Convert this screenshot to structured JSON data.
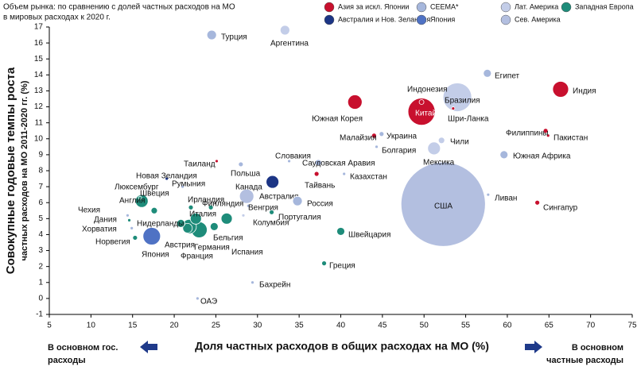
{
  "chart_data": {
    "type": "bubble",
    "subtitle": [
      "Объем рынка: по сравнению с долей частных расходов на МО",
      "в мировых расходах к 2020 г."
    ],
    "ylabel": [
      "Совокупные годовые темпы роста",
      "частных расходов на МО 2011-2020 гг. (%)"
    ],
    "xlabel": "Доля частных расходов в общих расходах на МО (%)",
    "left_note": [
      "В основном гос.",
      "расходы"
    ],
    "right_note": [
      "В основном",
      "частные расходы"
    ],
    "xlim": [
      5,
      75
    ],
    "xticks": [
      5,
      10,
      15,
      20,
      25,
      30,
      35,
      40,
      45,
      50,
      55,
      60,
      65,
      70,
      75
    ],
    "ylim": [
      -1,
      17
    ],
    "yticks": [
      -1,
      0,
      1,
      2,
      3,
      4,
      5,
      6,
      7,
      8,
      9,
      10,
      11,
      12,
      13,
      14,
      15,
      16,
      17
    ],
    "legend_position": "top",
    "series": [
      {
        "name": "Азия за искл. Японии",
        "color": "#c8102e",
        "labels": [
          "Индия",
          "Индонезия",
          "Китай",
          "Южная Корея",
          "Шри-Ланка",
          "Малайзия",
          "Филиппины",
          "Пакистан",
          "Таиланд",
          "Тайвань",
          "Сингапур"
        ],
        "x": [
          66.4,
          49.7,
          49.7,
          41.7,
          53.5,
          44.0,
          64.6,
          64.9,
          25.1,
          37.1,
          63.6
        ],
        "values": [
          13.1,
          12.3,
          11.7,
          12.3,
          11.9,
          10.2,
          10.5,
          10.2,
          8.6,
          7.8,
          6.0
        ],
        "sizes": [
          100,
          9,
          290,
          81,
          4,
          9,
          9,
          4,
          4,
          9,
          9
        ]
      },
      {
        "name": "CEEMA*",
        "color": "#a6b7dc",
        "labels": [
          "Турция",
          "Египет",
          "Украина",
          "Болгария",
          "Южная Африка",
          "Словакия",
          "Саудовская Аравия",
          "Польша",
          "Казахстан",
          "Ливан",
          "Россия",
          "Венгрия",
          "Румыния",
          "Чехия",
          "Хорватия",
          "Бахрейн",
          "ОАЭ"
        ],
        "x": [
          24.5,
          57.6,
          44.9,
          44.3,
          59.6,
          33.8,
          37.3,
          28.0,
          40.4,
          57.7,
          34.8,
          28.9,
          21.0,
          14.4,
          14.9,
          29.4,
          22.8
        ],
        "values": [
          16.5,
          14.1,
          10.3,
          9.5,
          9.0,
          8.6,
          8.5,
          8.4,
          7.8,
          6.5,
          6.1,
          5.8,
          7.0,
          5.2,
          4.4,
          1.0,
          0.0
        ],
        "sizes": [
          36,
          25,
          9,
          4,
          25,
          4,
          16,
          9,
          4,
          4,
          36,
          4,
          4,
          4,
          4,
          4,
          4
        ]
      },
      {
        "name": "Лат. Америка",
        "color": "#c3cde8",
        "labels": [
          "Аргентина",
          "Бразилия",
          "Чили",
          "Мексика",
          "Колумбия"
        ],
        "x": [
          33.3,
          54.0,
          52.1,
          51.2,
          28.3
        ],
        "values": [
          16.8,
          12.6,
          9.9,
          9.4,
          5.2
        ],
        "sizes": [
          36,
          324,
          16,
          64,
          4
        ]
      },
      {
        "name": "Западная Европа",
        "color": "#1e8c7a",
        "labels": [
          "Люксембург",
          "Англия",
          "Швеция",
          "Ирландия",
          "Финляндия",
          "Португалия",
          "Италия",
          "Нидерланды",
          "Австрия",
          "Франция",
          "Германия",
          "Бельгия",
          "Испания",
          "Швейцария",
          "Дания",
          "Норвегия",
          "Греция"
        ],
        "x": [
          15.9,
          16.1,
          17.6,
          22.0,
          24.4,
          31.7,
          22.6,
          20.8,
          21.6,
          21.8,
          23.0,
          24.8,
          26.3,
          40.0,
          14.6,
          15.3,
          38.0
        ],
        "values": [
          6.3,
          6.1,
          5.5,
          5.7,
          5.7,
          5.4,
          5.0,
          4.7,
          4.4,
          4.5,
          4.3,
          4.5,
          5.0,
          4.2,
          4.9,
          3.8,
          2.2
        ],
        "sizes": [
          4,
          64,
          16,
          9,
          9,
          9,
          49,
          25,
          36,
          81,
          100,
          25,
          49,
          25,
          4,
          9,
          9
        ]
      },
      {
        "name": "Австралия и Нов. Зеландия",
        "color": "#1c3585",
        "labels": [
          "Австралия",
          "Новая Зеландия"
        ],
        "x": [
          31.8,
          19.1
        ],
        "values": [
          7.3,
          7.5
        ],
        "sizes": [
          64,
          4
        ]
      },
      {
        "name": "Япония",
        "color": "#4f72c4",
        "labels": [
          "Япония"
        ],
        "x": [
          17.3
        ],
        "values": [
          3.9
        ],
        "sizes": [
          121
        ]
      },
      {
        "name": "Сев. Америка",
        "color": "#b3bfe0",
        "labels": [
          "Канада",
          "США"
        ],
        "x": [
          28.7,
          52.3
        ],
        "values": [
          6.4,
          5.9
        ],
        "sizes": [
          81,
          2809
        ]
      }
    ]
  }
}
